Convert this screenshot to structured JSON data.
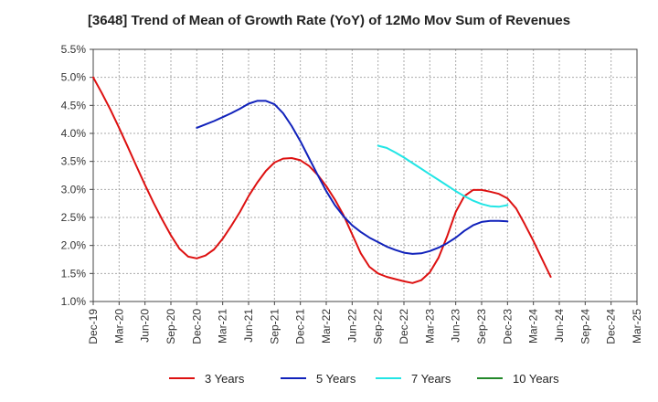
{
  "chart_data": {
    "type": "line",
    "title": "[3648]  Trend of Mean of Growth Rate (YoY) of 12Mo Mov Sum of Revenues",
    "xlabel": "",
    "ylabel": "",
    "ylim": [
      1.0,
      5.5
    ],
    "y_ticks": [
      1.0,
      1.5,
      2.0,
      2.5,
      3.0,
      3.5,
      4.0,
      4.5,
      5.0,
      5.5
    ],
    "y_tick_labels": [
      "1.0%",
      "1.5%",
      "2.0%",
      "2.5%",
      "3.0%",
      "3.5%",
      "4.0%",
      "4.5%",
      "5.0%",
      "5.5%"
    ],
    "x_tick_labels": [
      "Dec-19",
      "Mar-20",
      "Jun-20",
      "Sep-20",
      "Dec-20",
      "Mar-21",
      "Jun-21",
      "Sep-21",
      "Dec-21",
      "Mar-22",
      "Jun-22",
      "Sep-22",
      "Dec-22",
      "Mar-23",
      "Jun-23",
      "Sep-23",
      "Dec-23",
      "Mar-24",
      "Jun-24",
      "Sep-24",
      "Dec-24",
      "Mar-25"
    ],
    "grid": true,
    "legend_position": "bottom",
    "series": [
      {
        "name": "3 Years",
        "color": "#dd1111",
        "points": [
          [
            0,
            5.0
          ],
          [
            1,
            4.72
          ],
          [
            2,
            4.42
          ],
          [
            3,
            4.1
          ],
          [
            4,
            3.76
          ],
          [
            5,
            3.42
          ],
          [
            6,
            3.08
          ],
          [
            7,
            2.76
          ],
          [
            8,
            2.46
          ],
          [
            9,
            2.18
          ],
          [
            10,
            1.94
          ],
          [
            11,
            1.8
          ],
          [
            12,
            1.77
          ],
          [
            13,
            1.82
          ],
          [
            14,
            1.93
          ],
          [
            15,
            2.12
          ],
          [
            16,
            2.35
          ],
          [
            17,
            2.6
          ],
          [
            18,
            2.88
          ],
          [
            19,
            3.12
          ],
          [
            20,
            3.33
          ],
          [
            21,
            3.48
          ],
          [
            22,
            3.55
          ],
          [
            23,
            3.56
          ],
          [
            24,
            3.52
          ],
          [
            25,
            3.42
          ],
          [
            26,
            3.26
          ],
          [
            27,
            3.06
          ],
          [
            28,
            2.82
          ],
          [
            29,
            2.54
          ],
          [
            30,
            2.2
          ],
          [
            31,
            1.86
          ],
          [
            32,
            1.62
          ],
          [
            33,
            1.5
          ],
          [
            34,
            1.44
          ],
          [
            35,
            1.4
          ],
          [
            36,
            1.36
          ],
          [
            37,
            1.33
          ],
          [
            38,
            1.38
          ],
          [
            39,
            1.52
          ],
          [
            40,
            1.78
          ],
          [
            41,
            2.16
          ],
          [
            42,
            2.6
          ],
          [
            43,
            2.88
          ],
          [
            44,
            2.99
          ],
          [
            45,
            2.99
          ],
          [
            46,
            2.96
          ],
          [
            47,
            2.92
          ],
          [
            48,
            2.84
          ],
          [
            49,
            2.66
          ],
          [
            50,
            2.38
          ],
          [
            51,
            2.08
          ],
          [
            52,
            1.76
          ],
          [
            53,
            1.44
          ]
        ]
      },
      {
        "name": "5 Years",
        "color": "#1122bb",
        "points": [
          [
            12,
            4.1
          ],
          [
            13,
            4.16
          ],
          [
            14,
            4.22
          ],
          [
            15,
            4.29
          ],
          [
            16,
            4.36
          ],
          [
            17,
            4.44
          ],
          [
            18,
            4.53
          ],
          [
            19,
            4.58
          ],
          [
            20,
            4.58
          ],
          [
            21,
            4.52
          ],
          [
            22,
            4.36
          ],
          [
            23,
            4.13
          ],
          [
            24,
            3.86
          ],
          [
            25,
            3.56
          ],
          [
            26,
            3.26
          ],
          [
            27,
            2.97
          ],
          [
            28,
            2.72
          ],
          [
            29,
            2.52
          ],
          [
            30,
            2.36
          ],
          [
            31,
            2.24
          ],
          [
            32,
            2.14
          ],
          [
            33,
            2.06
          ],
          [
            34,
            1.98
          ],
          [
            35,
            1.92
          ],
          [
            36,
            1.87
          ],
          [
            37,
            1.85
          ],
          [
            38,
            1.86
          ],
          [
            39,
            1.9
          ],
          [
            40,
            1.96
          ],
          [
            41,
            2.04
          ],
          [
            42,
            2.14
          ],
          [
            43,
            2.26
          ],
          [
            44,
            2.36
          ],
          [
            45,
            2.42
          ],
          [
            46,
            2.44
          ],
          [
            47,
            2.44
          ],
          [
            48,
            2.43
          ]
        ]
      },
      {
        "name": "7 Years",
        "color": "#22e5e5",
        "points": [
          [
            33,
            3.78
          ],
          [
            34,
            3.74
          ],
          [
            35,
            3.66
          ],
          [
            36,
            3.57
          ],
          [
            37,
            3.47
          ],
          [
            38,
            3.37
          ],
          [
            39,
            3.27
          ],
          [
            40,
            3.17
          ],
          [
            41,
            3.07
          ],
          [
            42,
            2.97
          ],
          [
            43,
            2.88
          ],
          [
            44,
            2.8
          ],
          [
            45,
            2.74
          ],
          [
            46,
            2.7
          ],
          [
            47,
            2.69
          ],
          [
            48,
            2.72
          ]
        ]
      },
      {
        "name": "10 Years",
        "color": "#22882a",
        "points": []
      }
    ]
  }
}
